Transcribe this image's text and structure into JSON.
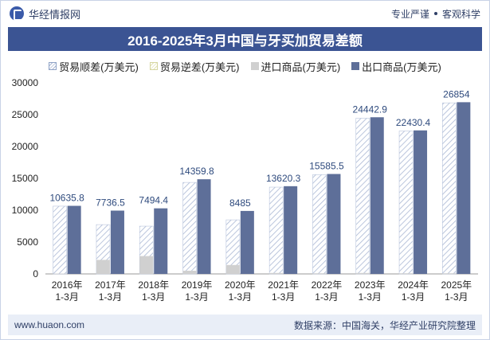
{
  "header": {
    "brand": "华经情报网",
    "slogan_left": "专业严谨",
    "slogan_right": "客观科学"
  },
  "footer": {
    "website": "www.huaon.com",
    "source": "数据来源：中国海关，华经产业研究院整理"
  },
  "colors": {
    "title_bg": "#3b5493",
    "export_bar": "#5e6f99",
    "import_bar": "#d0d0d0",
    "surplus_hatch": "#aab8d4",
    "label_text": "#2e4a7d"
  },
  "chart_data": {
    "type": "bar",
    "title": "2016-2025年3月中国与牙买加贸易差额",
    "categories": [
      "2016年\n1-3月",
      "2017年\n1-3月",
      "2018年\n1-3月",
      "2019年\n1-3月",
      "2020年\n1-3月",
      "2021年\n1-3月",
      "2022年\n1-3月",
      "2023年\n1-3月",
      "2024年\n1-3月",
      "2025年\n1-3月"
    ],
    "series": [
      {
        "name": "贸易顺差(万美元)",
        "values": [
          10635.8,
          7736.5,
          7494.4,
          14359.8,
          8485,
          13620.3,
          15585.5,
          24442.9,
          22430.4,
          26854
        ]
      },
      {
        "name": "贸易逆差(万美元)",
        "values": [
          0,
          0,
          0,
          0,
          0,
          0,
          0,
          0,
          0,
          0
        ]
      },
      {
        "name": "进口商品(万美元)",
        "values": [
          50,
          2200,
          2800,
          500,
          1400,
          150,
          100,
          150,
          100,
          100
        ]
      },
      {
        "name": "出口商品(万美元)",
        "values": [
          10685.8,
          9936.5,
          10294.4,
          14859.8,
          9885,
          13770.3,
          15685.5,
          24592.9,
          22530.4,
          26954
        ]
      }
    ],
    "data_labels": [
      "10635.8",
      "7736.5",
      "7494.4",
      "14359.8",
      "8485",
      "13620.3",
      "15585.5",
      "24442.9",
      "22430.4",
      "26854"
    ],
    "yticks": [
      "0",
      "5000",
      "10000",
      "15000",
      "20000",
      "25000",
      "30000"
    ],
    "ylim": [
      0,
      30000
    ],
    "xlabel": "",
    "ylabel": "",
    "legend_position": "top",
    "grid": false
  }
}
